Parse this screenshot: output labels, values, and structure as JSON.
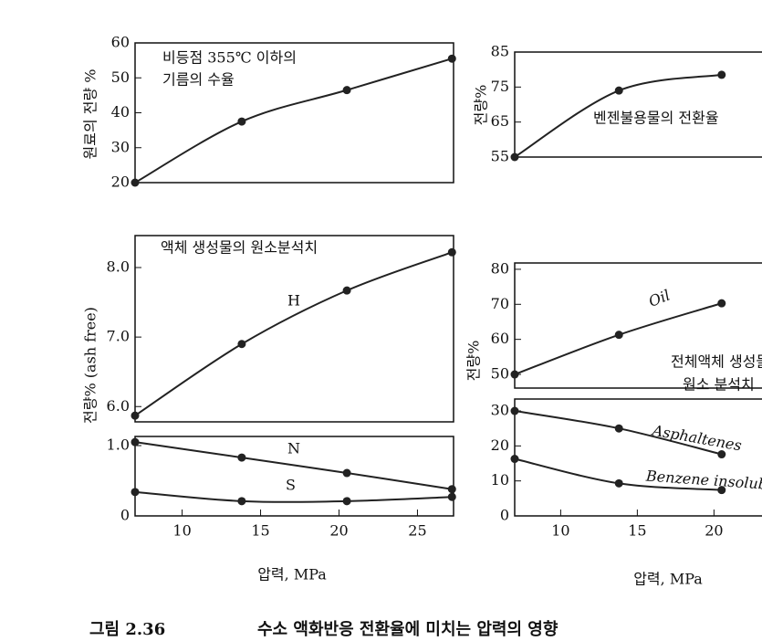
{
  "chart_data": [
    {
      "type": "line",
      "y_label": "원료의 전량 %",
      "annotation": [
        "비등점 355℃ 이하의",
        "기름의 수율"
      ],
      "x": [
        7,
        13.8,
        20.5,
        27.2
      ],
      "xlim": [
        7,
        27.3
      ],
      "ylim": [
        20,
        60
      ],
      "yticks": [
        20,
        30,
        40,
        50,
        60
      ],
      "series": [
        {
          "color": "#222222",
          "values": [
            20,
            37.5,
            46.5,
            55.5
          ]
        }
      ]
    },
    {
      "type": "line",
      "y_label": "전량%",
      "annotation": [
        "벤젠불용물의 전환율"
      ],
      "x": [
        7,
        13.8,
        20.5
      ],
      "xlim": [
        7,
        27.3
      ],
      "ylim": [
        55,
        85
      ],
      "yticks": [
        55,
        65,
        75,
        85
      ],
      "series": [
        {
          "color": "#222222",
          "values": [
            55,
            74,
            78.5
          ]
        }
      ]
    },
    {
      "type": "line",
      "y_label": "전량% (ash free)",
      "annotation": [
        "액체 생성물의 원소분석치"
      ],
      "x": [
        7,
        13.8,
        20.5,
        27.2
      ],
      "xlim": [
        7,
        27.3
      ],
      "ylim": [
        5.78,
        8.46
      ],
      "yticks": [
        {
          "value": 6,
          "label": "6.0"
        },
        {
          "value": 7,
          "label": "7.0"
        },
        {
          "value": 8,
          "label": "8.0"
        }
      ],
      "series": [
        {
          "name": "H",
          "color": "#222222",
          "values": [
            5.87,
            6.9,
            7.67,
            8.22
          ]
        }
      ]
    },
    {
      "type": "line",
      "x_label": "압력, MPa",
      "x": [
        7,
        13.8,
        20.5,
        27.2
      ],
      "xlim": [
        7,
        27.3
      ],
      "xticks": [
        10,
        15,
        20,
        25
      ],
      "ylim": [
        0,
        1.13
      ],
      "yticks": [
        0,
        {
          "value": 1,
          "label": "1.0"
        }
      ],
      "series": [
        {
          "name": "N",
          "color": "#222222",
          "values": [
            1.05,
            0.83,
            0.61,
            0.38
          ]
        },
        {
          "name": "S",
          "color": "#222222",
          "values": [
            0.34,
            0.21,
            0.21,
            0.27
          ]
        }
      ]
    },
    {
      "type": "line",
      "y_label": "전량%",
      "annotation": [
        "전체액체 생성물의",
        "원소 분석치"
      ],
      "x": [
        7,
        13.8,
        20.5
      ],
      "xlim": [
        7,
        27.3
      ],
      "ylim": [
        46.1,
        81.8
      ],
      "yticks": [
        50,
        60,
        70,
        80
      ],
      "series": [
        {
          "name": "Oil",
          "color": "#222222",
          "values": [
            50,
            61.3,
            70.3
          ]
        }
      ]
    },
    {
      "type": "line",
      "x_label": "압력, MPa",
      "x": [
        7,
        13.8,
        20.5
      ],
      "xlim": [
        7,
        27.3
      ],
      "xticks": [
        10,
        15,
        20
      ],
      "ylim": [
        0,
        33.4
      ],
      "yticks": [
        0,
        10,
        20,
        30
      ],
      "series": [
        {
          "name": "Asphaltenes",
          "color": "#222222",
          "values": [
            30,
            25,
            17.6
          ]
        },
        {
          "name": "Benzene insolubles",
          "color": "#222222",
          "values": [
            16.3,
            9.3,
            7.4
          ]
        }
      ]
    }
  ],
  "caption": {
    "label": "그림 2.36",
    "text": "수소 액화반응 전환율에 미치는 압력의 영향"
  }
}
